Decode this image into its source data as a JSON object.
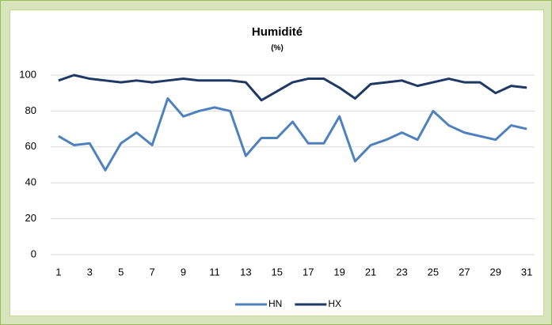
{
  "chart_data": {
    "type": "line",
    "title": "Humidité",
    "subtitle": "(%)",
    "categories": [
      1,
      null,
      3,
      null,
      5,
      null,
      7,
      null,
      9,
      null,
      11,
      null,
      13,
      null,
      15,
      null,
      17,
      null,
      19,
      null,
      21,
      null,
      23,
      null,
      25,
      null,
      27,
      null,
      29,
      null,
      31
    ],
    "series": [
      {
        "name": "HN",
        "color": "#4f81bd",
        "values": [
          66,
          61,
          62,
          47,
          62,
          68,
          61,
          87,
          77,
          80,
          82,
          80,
          55,
          65,
          65,
          74,
          62,
          62,
          77,
          52,
          61,
          64,
          68,
          64,
          80,
          72,
          68,
          66,
          64,
          72,
          70
        ]
      },
      {
        "name": "HX",
        "color": "#1f3864",
        "values": [
          97,
          100,
          98,
          97,
          96,
          97,
          96,
          97,
          98,
          97,
          97,
          97,
          96,
          86,
          91,
          96,
          98,
          98,
          93,
          87,
          95,
          96,
          97,
          94,
          96,
          98,
          96,
          96,
          90,
          94,
          93
        ]
      }
    ],
    "ylim": [
      0,
      100
    ],
    "yticks": [
      0,
      20,
      40,
      60,
      80,
      100
    ],
    "grid": true,
    "legend": "bottom"
  }
}
